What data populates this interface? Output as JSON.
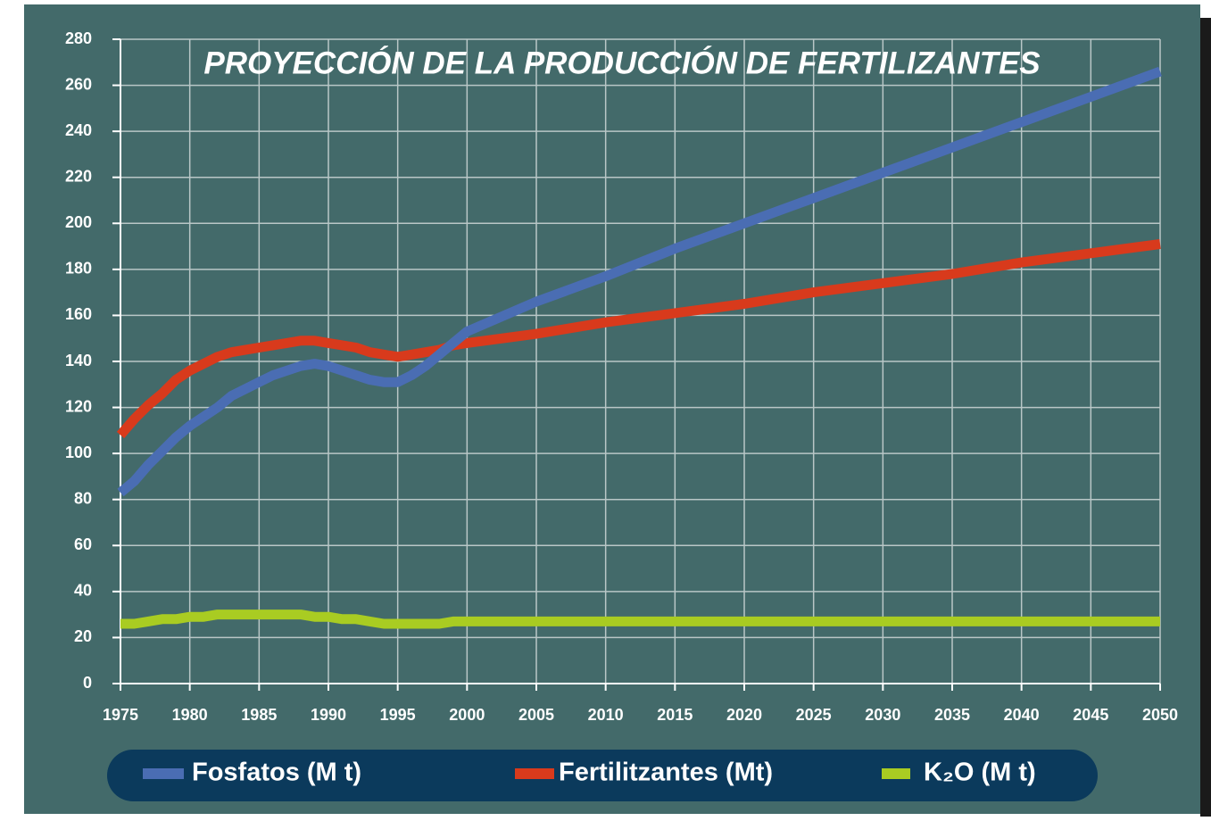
{
  "chart_data": {
    "type": "line",
    "title": "PROYECCIÓN DE LA PRODUCCIÓN DE FERTILIZANTES",
    "x": [
      1975,
      1976,
      1977,
      1978,
      1979,
      1980,
      1981,
      1982,
      1983,
      1984,
      1985,
      1986,
      1987,
      1988,
      1989,
      1990,
      1991,
      1992,
      1993,
      1994,
      1995,
      1996,
      1997,
      1998,
      1999,
      2000,
      2005,
      2010,
      2015,
      2020,
      2025,
      2030,
      2035,
      2040,
      2045,
      2050
    ],
    "series": [
      {
        "name": "Fosfatos (M t)",
        "color": "#4a6db3",
        "values": [
          83,
          88,
          95,
          101,
          107,
          112,
          116,
          120,
          125,
          128,
          131,
          134,
          136,
          138,
          139,
          138,
          136,
          134,
          132,
          131,
          131,
          134,
          138,
          143,
          148,
          153,
          166,
          177,
          189,
          200,
          211,
          222,
          233,
          244,
          255,
          266
        ]
      },
      {
        "name": "Fertilitzantes (Mt)",
        "color": "#d83a1c",
        "values": [
          108,
          115,
          121,
          126,
          132,
          136,
          139,
          142,
          144,
          145,
          146,
          147,
          148,
          149,
          149,
          148,
          147,
          146,
          144,
          143,
          142,
          143,
          144,
          145,
          147,
          148,
          152,
          157,
          161,
          165,
          170,
          174,
          178,
          183,
          187,
          191
        ]
      },
      {
        "name": "K₂O (M t)",
        "color": "#a9cc22",
        "values": [
          26,
          26,
          27,
          28,
          28,
          29,
          29,
          30,
          30,
          30,
          30,
          30,
          30,
          30,
          29,
          29,
          28,
          28,
          27,
          26,
          26,
          26,
          26,
          26,
          27,
          27,
          27,
          27,
          27,
          27,
          27,
          27,
          27,
          27,
          27,
          27
        ]
      }
    ],
    "xlim": [
      1975,
      2050
    ],
    "ylim": [
      0,
      280
    ],
    "xticks": [
      1975,
      1980,
      1985,
      1990,
      1995,
      2000,
      2005,
      2010,
      2015,
      2020,
      2025,
      2030,
      2035,
      2040,
      2045,
      2050
    ],
    "yticks": [
      0,
      20,
      40,
      60,
      80,
      100,
      120,
      140,
      160,
      180,
      200,
      220,
      240,
      260,
      280
    ],
    "grid": true,
    "legend": "bottom"
  }
}
